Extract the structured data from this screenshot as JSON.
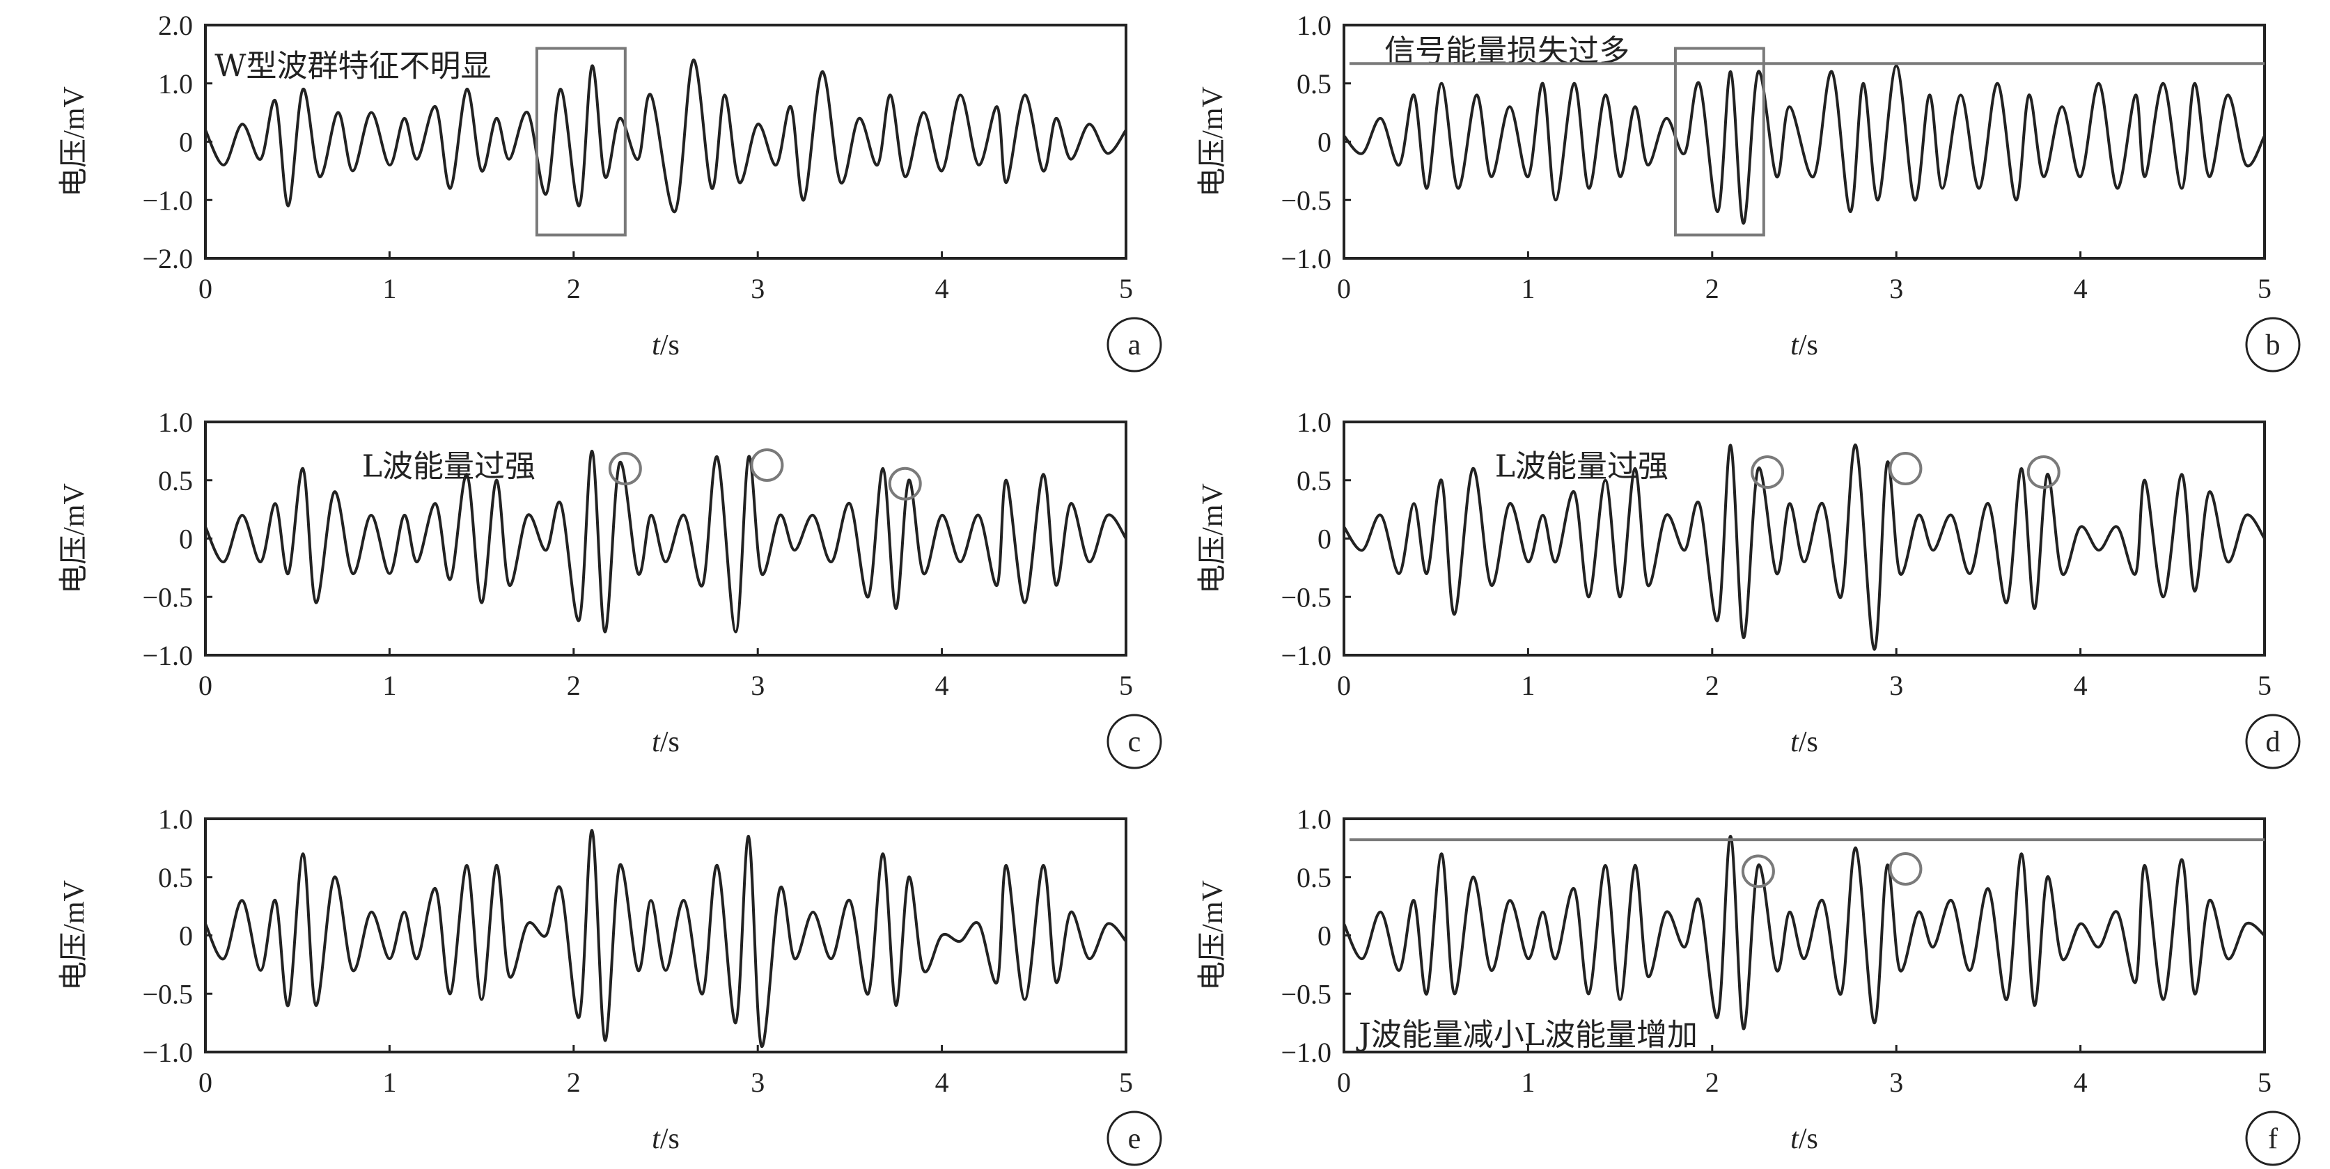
{
  "chart_data": [
    {
      "type": "line",
      "panel_label": "a",
      "xlabel_italic": "t",
      "xlabel_unit": "/s",
      "ylabel": "电压/mV",
      "xlim": [
        0,
        5
      ],
      "ylim": [
        -2.0,
        2.0
      ],
      "xticks": [
        "0",
        "1",
        "2",
        "3",
        "4",
        "5"
      ],
      "yticks": [
        "2.0",
        "1.0",
        "0",
        "−1.0",
        "−2.0"
      ],
      "yticks_values": [
        2,
        1,
        0,
        -1,
        -2
      ],
      "series": [
        {
          "color": "#222222",
          "x": [
            0,
            0.1,
            0.2,
            0.3,
            0.38,
            0.45,
            0.53,
            0.62,
            0.72,
            0.8,
            0.9,
            1.0,
            1.08,
            1.15,
            1.25,
            1.33,
            1.42,
            1.5,
            1.58,
            1.65,
            1.75,
            1.85,
            1.93,
            2.03,
            2.1,
            2.17,
            2.25,
            2.35,
            2.42,
            2.55,
            2.65,
            2.75,
            2.82,
            2.9,
            3.0,
            3.1,
            3.18,
            3.25,
            3.35,
            3.45,
            3.55,
            3.65,
            3.72,
            3.8,
            3.9,
            4.0,
            4.1,
            4.2,
            4.3,
            4.35,
            4.45,
            4.55,
            4.62,
            4.7,
            4.8,
            4.9,
            5.0
          ],
          "y": [
            0.2,
            -0.4,
            0.3,
            -0.3,
            0.7,
            -1.1,
            0.9,
            -0.6,
            0.5,
            -0.5,
            0.5,
            -0.4,
            0.4,
            -0.3,
            0.6,
            -0.8,
            0.9,
            -0.5,
            0.4,
            -0.3,
            0.5,
            -0.9,
            0.9,
            -1.1,
            1.3,
            -0.6,
            0.4,
            -0.3,
            0.8,
            -1.2,
            1.4,
            -0.8,
            0.8,
            -0.7,
            0.3,
            -0.4,
            0.6,
            -1.0,
            1.2,
            -0.7,
            0.4,
            -0.4,
            0.8,
            -0.6,
            0.5,
            -0.5,
            0.8,
            -0.4,
            0.6,
            -0.7,
            0.8,
            -0.5,
            0.4,
            -0.3,
            0.3,
            -0.2,
            0.2
          ]
        }
      ],
      "annotations": [
        {
          "type": "text",
          "text": "W型波群特征不明显",
          "x": 0.05,
          "y": 1.3
        },
        {
          "type": "rect",
          "x0": 1.8,
          "x1": 2.28,
          "y0": -1.6,
          "y1": 1.6
        }
      ]
    },
    {
      "type": "line",
      "panel_label": "b",
      "xlabel_italic": "t",
      "xlabel_unit": "/s",
      "ylabel": "电压/mV",
      "xlim": [
        0,
        5
      ],
      "ylim": [
        -1.0,
        1.0
      ],
      "xticks": [
        "0",
        "1",
        "2",
        "3",
        "4",
        "5"
      ],
      "yticks": [
        "1.0",
        "0.5",
        "0",
        "−0.5",
        "−1.0"
      ],
      "yticks_values": [
        1,
        0.5,
        0,
        -0.5,
        -1
      ],
      "series": [
        {
          "color": "#222222",
          "x": [
            0,
            0.1,
            0.2,
            0.3,
            0.38,
            0.45,
            0.53,
            0.62,
            0.72,
            0.8,
            0.9,
            1.0,
            1.08,
            1.15,
            1.25,
            1.33,
            1.42,
            1.5,
            1.58,
            1.65,
            1.75,
            1.85,
            1.93,
            2.03,
            2.1,
            2.17,
            2.25,
            2.35,
            2.42,
            2.55,
            2.65,
            2.75,
            2.82,
            2.9,
            3.0,
            3.1,
            3.18,
            3.25,
            3.35,
            3.45,
            3.55,
            3.65,
            3.72,
            3.8,
            3.9,
            4.0,
            4.1,
            4.2,
            4.3,
            4.35,
            4.45,
            4.55,
            4.62,
            4.7,
            4.8,
            4.9,
            5.0
          ],
          "y": [
            0.05,
            -0.1,
            0.2,
            -0.2,
            0.4,
            -0.4,
            0.5,
            -0.4,
            0.4,
            -0.3,
            0.3,
            -0.3,
            0.5,
            -0.5,
            0.5,
            -0.4,
            0.4,
            -0.3,
            0.3,
            -0.2,
            0.2,
            -0.1,
            0.5,
            -0.6,
            0.6,
            -0.7,
            0.6,
            -0.3,
            0.3,
            -0.3,
            0.6,
            -0.6,
            0.5,
            -0.5,
            0.65,
            -0.5,
            0.4,
            -0.4,
            0.4,
            -0.4,
            0.5,
            -0.5,
            0.4,
            -0.3,
            0.3,
            -0.3,
            0.5,
            -0.4,
            0.4,
            -0.3,
            0.5,
            -0.4,
            0.5,
            -0.3,
            0.4,
            -0.2,
            0.05
          ]
        }
      ],
      "annotations": [
        {
          "type": "text",
          "text": "信号能量损失过多",
          "x": 0.22,
          "y": 0.78
        },
        {
          "type": "hline",
          "y": 0.67,
          "x0": 0.03,
          "x1": 5.0
        },
        {
          "type": "rect",
          "x0": 1.8,
          "x1": 2.28,
          "y0": -0.8,
          "y1": 0.8
        }
      ]
    },
    {
      "type": "line",
      "panel_label": "c",
      "xlabel_italic": "t",
      "xlabel_unit": "/s",
      "ylabel": "电压/mV",
      "xlim": [
        0,
        5
      ],
      "ylim": [
        -1.0,
        1.0
      ],
      "xticks": [
        "0",
        "1",
        "2",
        "3",
        "4",
        "5"
      ],
      "yticks": [
        "1.0",
        "0.5",
        "0",
        "−0.5",
        "−1.0"
      ],
      "yticks_values": [
        1,
        0.5,
        0,
        -0.5,
        -1
      ],
      "series": [
        {
          "color": "#222222",
          "x": [
            0,
            0.1,
            0.2,
            0.3,
            0.38,
            0.45,
            0.53,
            0.6,
            0.7,
            0.8,
            0.9,
            1.0,
            1.08,
            1.15,
            1.25,
            1.33,
            1.42,
            1.5,
            1.58,
            1.65,
            1.75,
            1.85,
            1.93,
            2.03,
            2.1,
            2.17,
            2.25,
            2.35,
            2.42,
            2.5,
            2.6,
            2.7,
            2.78,
            2.88,
            2.95,
            3.02,
            3.12,
            3.2,
            3.3,
            3.4,
            3.5,
            3.6,
            3.68,
            3.75,
            3.82,
            3.9,
            4.0,
            4.1,
            4.2,
            4.3,
            4.35,
            4.45,
            4.55,
            4.62,
            4.7,
            4.8,
            4.9,
            5.0
          ],
          "y": [
            0.1,
            -0.2,
            0.2,
            -0.2,
            0.3,
            -0.3,
            0.6,
            -0.55,
            0.4,
            -0.3,
            0.2,
            -0.3,
            0.2,
            -0.2,
            0.3,
            -0.35,
            0.55,
            -0.55,
            0.5,
            -0.4,
            0.2,
            -0.1,
            0.3,
            -0.7,
            0.75,
            -0.8,
            0.65,
            -0.3,
            0.2,
            -0.2,
            0.2,
            -0.4,
            0.7,
            -0.8,
            0.7,
            -0.3,
            0.2,
            -0.1,
            0.2,
            -0.2,
            0.3,
            -0.5,
            0.6,
            -0.6,
            0.5,
            -0.3,
            0.2,
            -0.2,
            0.2,
            -0.4,
            0.5,
            -0.55,
            0.55,
            -0.4,
            0.3,
            -0.2,
            0.2,
            0.0
          ]
        }
      ],
      "annotations": [
        {
          "type": "text",
          "text": "L波能量过强",
          "x": 0.85,
          "y": 0.62
        },
        {
          "type": "circle",
          "x": 2.28,
          "y": 0.6
        },
        {
          "type": "circle",
          "x": 3.05,
          "y": 0.63
        },
        {
          "type": "circle",
          "x": 3.8,
          "y": 0.47
        }
      ]
    },
    {
      "type": "line",
      "panel_label": "d",
      "xlabel_italic": "t",
      "xlabel_unit": "/s",
      "ylabel": "电压/mV",
      "xlim": [
        0,
        5
      ],
      "ylim": [
        -1.0,
        1.0
      ],
      "xticks": [
        "0",
        "1",
        "2",
        "3",
        "4",
        "5"
      ],
      "yticks": [
        "1.0",
        "0.5",
        "0",
        "−0.5",
        "−1.0"
      ],
      "yticks_values": [
        1,
        0.5,
        0,
        -0.5,
        -1
      ],
      "series": [
        {
          "color": "#222222",
          "x": [
            0,
            0.1,
            0.2,
            0.3,
            0.38,
            0.45,
            0.53,
            0.6,
            0.7,
            0.8,
            0.9,
            1.0,
            1.08,
            1.15,
            1.25,
            1.33,
            1.42,
            1.5,
            1.58,
            1.65,
            1.75,
            1.85,
            1.93,
            2.03,
            2.1,
            2.17,
            2.25,
            2.35,
            2.42,
            2.5,
            2.6,
            2.7,
            2.78,
            2.88,
            2.95,
            3.02,
            3.12,
            3.2,
            3.3,
            3.4,
            3.5,
            3.6,
            3.68,
            3.75,
            3.82,
            3.9,
            4.0,
            4.1,
            4.2,
            4.3,
            4.35,
            4.45,
            4.55,
            4.62,
            4.7,
            4.8,
            4.9,
            5.0
          ],
          "y": [
            0.1,
            -0.1,
            0.2,
            -0.3,
            0.3,
            -0.3,
            0.5,
            -0.65,
            0.6,
            -0.4,
            0.3,
            -0.2,
            0.2,
            -0.2,
            0.4,
            -0.5,
            0.5,
            -0.5,
            0.6,
            -0.4,
            0.2,
            -0.1,
            0.3,
            -0.7,
            0.8,
            -0.85,
            0.6,
            -0.3,
            0.3,
            -0.2,
            0.3,
            -0.5,
            0.8,
            -0.95,
            0.65,
            -0.3,
            0.2,
            -0.1,
            0.2,
            -0.3,
            0.3,
            -0.55,
            0.6,
            -0.6,
            0.55,
            -0.3,
            0.1,
            -0.1,
            0.1,
            -0.3,
            0.5,
            -0.5,
            0.55,
            -0.45,
            0.4,
            -0.2,
            0.2,
            0.0
          ]
        }
      ],
      "annotations": [
        {
          "type": "text",
          "text": "L波能量过强",
          "x": 0.82,
          "y": 0.62
        },
        {
          "type": "circle",
          "x": 2.3,
          "y": 0.57
        },
        {
          "type": "circle",
          "x": 3.05,
          "y": 0.6
        },
        {
          "type": "circle",
          "x": 3.8,
          "y": 0.57
        }
      ]
    },
    {
      "type": "line",
      "panel_label": "e",
      "xlabel_italic": "t",
      "xlabel_unit": "/s",
      "ylabel": "电压/mV",
      "xlim": [
        0,
        5
      ],
      "ylim": [
        -1.0,
        1.0
      ],
      "xticks": [
        "0",
        "1",
        "2",
        "3",
        "4",
        "5"
      ],
      "yticks": [
        "1.0",
        "0.5",
        "0",
        "−0.5",
        "−1.0"
      ],
      "yticks_values": [
        1,
        0.5,
        0,
        -0.5,
        -1
      ],
      "series": [
        {
          "color": "#222222",
          "x": [
            0,
            0.1,
            0.2,
            0.3,
            0.38,
            0.45,
            0.53,
            0.6,
            0.7,
            0.8,
            0.9,
            1.0,
            1.08,
            1.15,
            1.25,
            1.33,
            1.42,
            1.5,
            1.58,
            1.65,
            1.75,
            1.85,
            1.93,
            2.03,
            2.1,
            2.17,
            2.25,
            2.35,
            2.42,
            2.5,
            2.6,
            2.7,
            2.78,
            2.88,
            2.95,
            3.02,
            3.12,
            3.2,
            3.3,
            3.4,
            3.5,
            3.6,
            3.68,
            3.75,
            3.82,
            3.9,
            4.0,
            4.1,
            4.2,
            4.3,
            4.35,
            4.45,
            4.55,
            4.62,
            4.7,
            4.8,
            4.9,
            5.0
          ],
          "y": [
            0.1,
            -0.2,
            0.3,
            -0.3,
            0.3,
            -0.6,
            0.7,
            -0.6,
            0.5,
            -0.3,
            0.2,
            -0.2,
            0.2,
            -0.2,
            0.4,
            -0.5,
            0.6,
            -0.55,
            0.6,
            -0.35,
            0.1,
            0.0,
            0.4,
            -0.7,
            0.9,
            -0.9,
            0.6,
            -0.3,
            0.3,
            -0.3,
            0.3,
            -0.5,
            0.6,
            -0.75,
            0.85,
            -0.95,
            0.4,
            -0.2,
            0.2,
            -0.2,
            0.3,
            -0.5,
            0.7,
            -0.6,
            0.5,
            -0.3,
            0.0,
            -0.05,
            0.1,
            -0.4,
            0.6,
            -0.55,
            0.6,
            -0.4,
            0.2,
            -0.2,
            0.1,
            -0.05
          ]
        }
      ],
      "annotations": []
    },
    {
      "type": "line",
      "panel_label": "f",
      "xlabel_italic": "t",
      "xlabel_unit": "/s",
      "ylabel": "电压/mV",
      "xlim": [
        0,
        5
      ],
      "ylim": [
        -1.0,
        1.0
      ],
      "xticks": [
        "0",
        "1",
        "2",
        "3",
        "4",
        "5"
      ],
      "yticks": [
        "1.0",
        "0.5",
        "0",
        "−0.5",
        "−1.0"
      ],
      "yticks_values": [
        1,
        0.5,
        0,
        -0.5,
        -1
      ],
      "series": [
        {
          "color": "#222222",
          "x": [
            0,
            0.1,
            0.2,
            0.3,
            0.38,
            0.45,
            0.53,
            0.6,
            0.7,
            0.8,
            0.9,
            1.0,
            1.08,
            1.15,
            1.25,
            1.33,
            1.42,
            1.5,
            1.58,
            1.65,
            1.75,
            1.85,
            1.93,
            2.03,
            2.1,
            2.17,
            2.25,
            2.35,
            2.42,
            2.5,
            2.6,
            2.7,
            2.78,
            2.88,
            2.95,
            3.02,
            3.12,
            3.2,
            3.3,
            3.4,
            3.5,
            3.6,
            3.68,
            3.75,
            3.82,
            3.9,
            4.0,
            4.1,
            4.2,
            4.3,
            4.35,
            4.45,
            4.55,
            4.62,
            4.7,
            4.8,
            4.9,
            5.0
          ],
          "y": [
            0.1,
            -0.2,
            0.2,
            -0.3,
            0.3,
            -0.5,
            0.7,
            -0.5,
            0.5,
            -0.3,
            0.3,
            -0.2,
            0.2,
            -0.2,
            0.4,
            -0.5,
            0.6,
            -0.55,
            0.6,
            -0.35,
            0.2,
            -0.1,
            0.3,
            -0.7,
            0.85,
            -0.8,
            0.6,
            -0.3,
            0.2,
            -0.2,
            0.3,
            -0.5,
            0.75,
            -0.75,
            0.6,
            -0.3,
            0.2,
            -0.1,
            0.3,
            -0.3,
            0.4,
            -0.55,
            0.7,
            -0.6,
            0.5,
            -0.2,
            0.1,
            -0.1,
            0.2,
            -0.4,
            0.6,
            -0.55,
            0.65,
            -0.5,
            0.3,
            -0.2,
            0.1,
            0.0
          ]
        }
      ],
      "annotations": [
        {
          "type": "hline",
          "y": 0.82,
          "x0": 0.03,
          "x1": 5.0
        },
        {
          "type": "circle",
          "x": 2.25,
          "y": 0.55
        },
        {
          "type": "circle",
          "x": 3.05,
          "y": 0.57
        },
        {
          "type": "text",
          "text": "J波能量减小L波能量增加",
          "x": 0.08,
          "y": -0.85
        }
      ]
    }
  ]
}
